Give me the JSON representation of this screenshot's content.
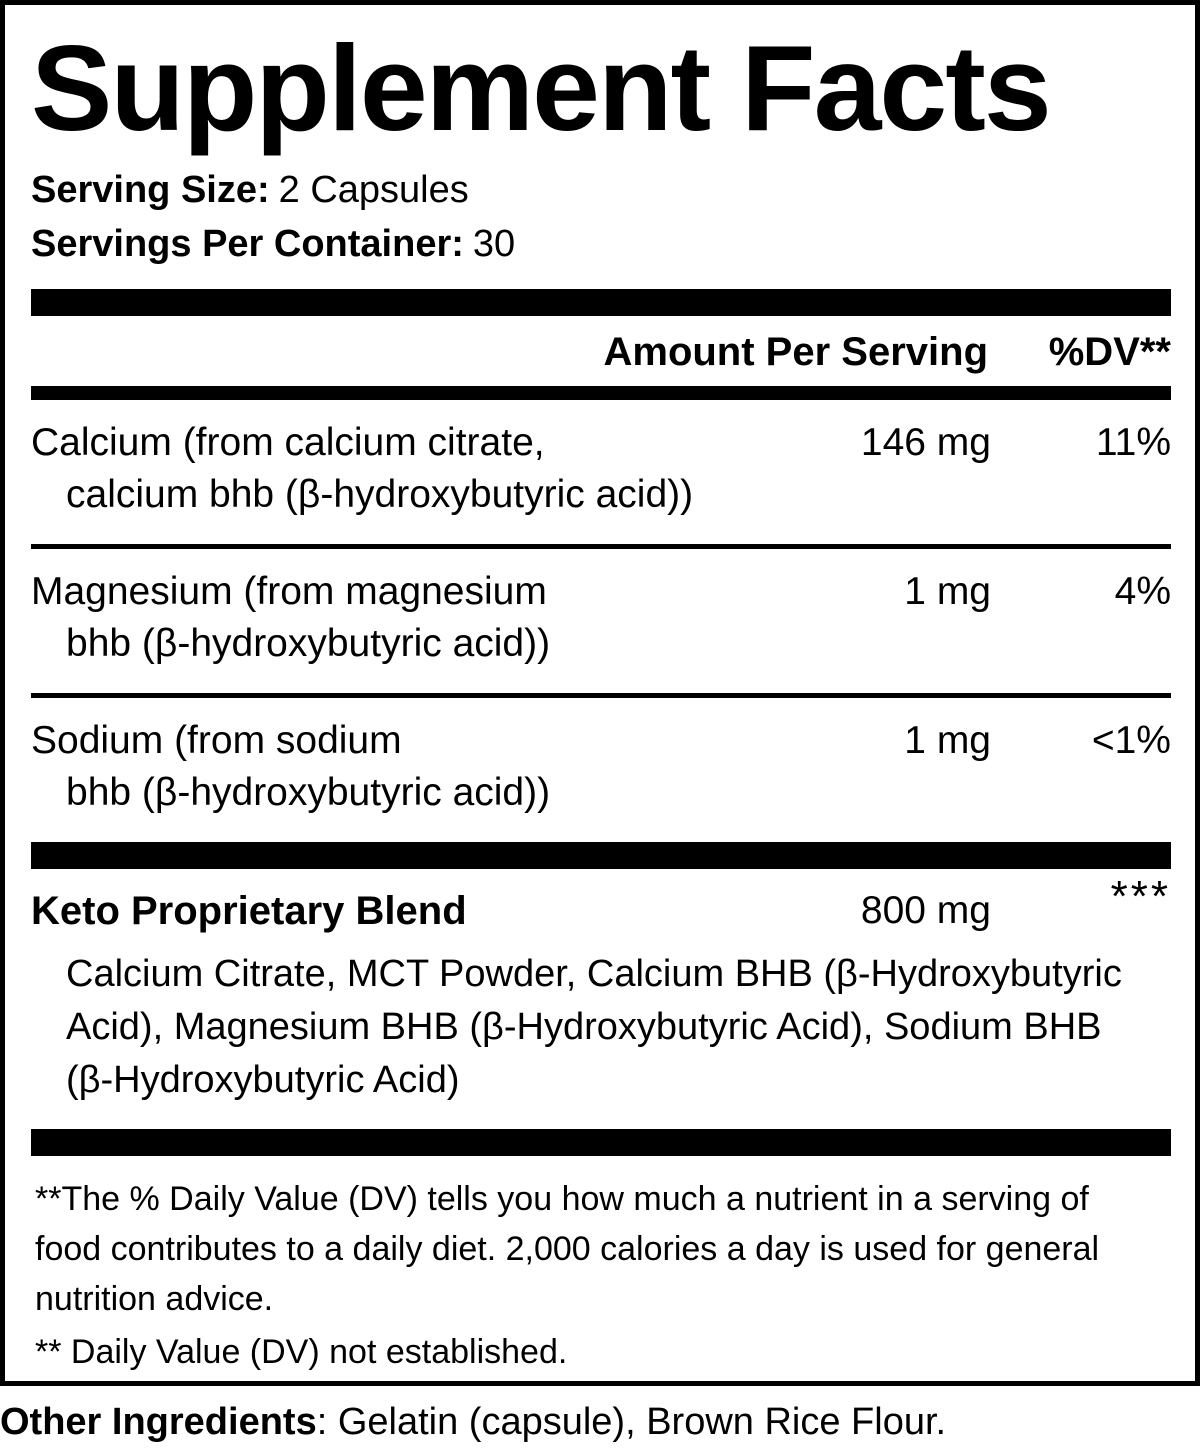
{
  "colors": {
    "ink": "#000000",
    "background": "#ffffff"
  },
  "title": "Supplement Facts",
  "serving": {
    "size_label": "Serving Size:",
    "size_value": "2 Capsules",
    "per_container_label": "Servings Per Container:",
    "per_container_value": "30"
  },
  "table": {
    "amount_header": "Amount Per Serving",
    "dv_header": "%DV**",
    "rows": [
      {
        "name_line1": "Calcium (from calcium citrate,",
        "name_line2": "calcium bhb (β-hydroxybutyric acid))",
        "amount": "146 mg",
        "dv": "11%"
      },
      {
        "name_line1": "Magnesium (from magnesium",
        "name_line2": "bhb (β-hydroxybutyric acid))",
        "amount": "1 mg",
        "dv": "4%"
      },
      {
        "name_line1": "Sodium (from sodium",
        "name_line2": "bhb (β-hydroxybutyric acid))",
        "amount": "1 mg",
        "dv": "<1%"
      }
    ],
    "blend": {
      "name": "Keto Proprietary Blend",
      "amount": "800 mg",
      "dv": "***",
      "description": "Calcium Citrate, MCT Powder, Calcium BHB (β-Hydroxybutyric Acid), Magnesium BHB (β-Hydroxybutyric Acid), Sodium BHB (β-Hydroxybutyric Acid)"
    }
  },
  "footnotes": {
    "dv_explanation": "**The % Daily Value (DV) tells you how much a nutrient in a serving of food contributes to a daily diet. 2,000 calories a day is used for general nutrition advice.",
    "not_established": "** Daily Value (DV) not established."
  },
  "other_ingredients": {
    "label": "Other Ingredients",
    "value": ": Gelatin (capsule), Brown Rice Flour."
  }
}
